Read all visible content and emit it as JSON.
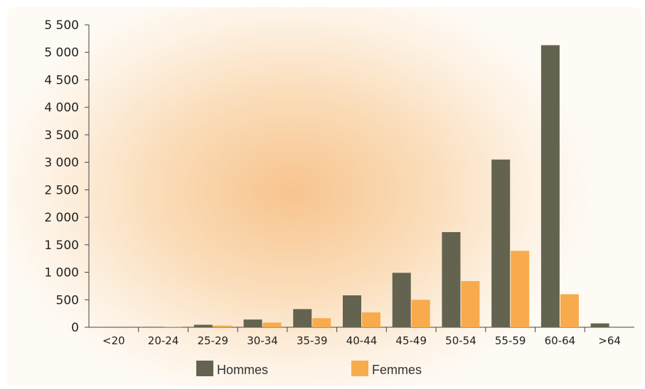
{
  "chart_data": {
    "type": "bar",
    "categories": [
      "<20",
      "20-24",
      "25-29",
      "30-34",
      "35-39",
      "40-44",
      "45-49",
      "50-54",
      "55-59",
      "60-64",
      ">64"
    ],
    "series": [
      {
        "name": "Hommes",
        "color": "#636350",
        "values": [
          0,
          8,
          45,
          140,
          330,
          580,
          990,
          1730,
          3050,
          5130,
          70
        ]
      },
      {
        "name": "Femmes",
        "color": "#f8ab4c",
        "values": [
          0,
          4,
          30,
          85,
          165,
          270,
          500,
          840,
          1390,
          600,
          0
        ]
      }
    ],
    "yticks": [
      "0",
      "500",
      "1 000",
      "1 500",
      "2 000",
      "2 500",
      "3 000",
      "3 500",
      "4 000",
      "4 500",
      "5 000",
      "5 500"
    ],
    "ylim": [
      0,
      5500
    ],
    "grid": false,
    "legend": "bottom"
  }
}
